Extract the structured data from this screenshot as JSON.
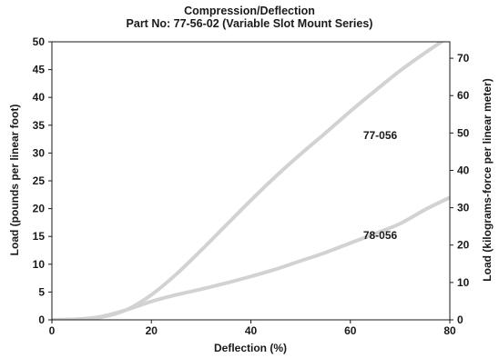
{
  "chart_data": {
    "type": "line",
    "title": "Compression/Deflection",
    "subtitle": "Part No: 77-56-02 (Variable Slot Mount Series)",
    "xlabel": "Deflection (%)",
    "ylabel": "Load (pounds per linear foot)",
    "y2label": "Load (kilograms-force per linear meter)",
    "xlim": [
      0,
      80
    ],
    "ylim": [
      0,
      50
    ],
    "y2lim": [
      0,
      74.4
    ],
    "xticks": [
      0,
      20,
      40,
      60,
      80
    ],
    "yticks": [
      0,
      5,
      10,
      15,
      20,
      25,
      30,
      35,
      40,
      45,
      50
    ],
    "y2ticks": [
      0,
      10,
      20,
      30,
      40,
      50,
      60,
      70
    ],
    "grid": false,
    "legend": "none",
    "series": [
      {
        "name": "77-056",
        "color": "#d2d2d2",
        "x": [
          0,
          5,
          10,
          15,
          20,
          25,
          30,
          35,
          40,
          45,
          50,
          55,
          60,
          65,
          70,
          75,
          80
        ],
        "y": [
          0,
          0.1,
          0.5,
          1.8,
          4.5,
          8.2,
          12.5,
          17.0,
          21.5,
          25.8,
          29.8,
          33.6,
          37.5,
          41.2,
          44.8,
          48.0,
          51.0
        ]
      },
      {
        "name": "78-056",
        "color": "#d2d2d2",
        "x": [
          0,
          5,
          10,
          15,
          20,
          25,
          30,
          35,
          40,
          45,
          50,
          55,
          60,
          65,
          70,
          75,
          80
        ],
        "y": [
          0,
          0.1,
          0.6,
          1.8,
          3.3,
          4.5,
          5.5,
          6.6,
          7.8,
          9.1,
          10.6,
          12.1,
          13.8,
          15.5,
          17.3,
          19.8,
          22.0
        ]
      }
    ]
  }
}
